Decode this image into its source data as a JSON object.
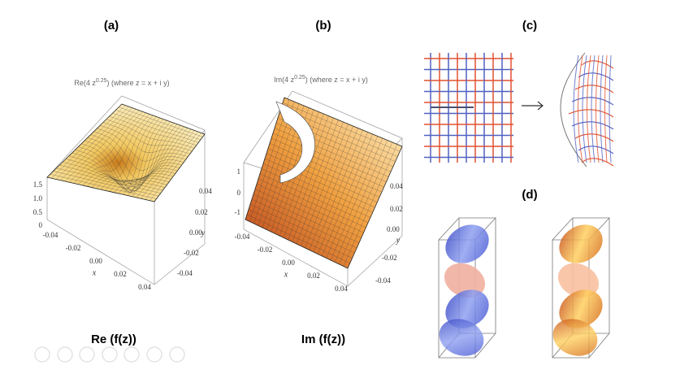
{
  "panels": [
    {
      "label": "(a)",
      "caption": "Re (f(z))",
      "plot": {
        "title": {
          "lead": "Re(4 z",
          "exp": "0.25",
          "tail": ") (where z = x + i y)"
        },
        "z_ticks": [
          "1.5",
          "1.0",
          "0.5",
          "0"
        ],
        "x_ticks": [
          "-0.04",
          "-0.02",
          "0.00",
          "0.02",
          "0.04"
        ],
        "x_label": "x",
        "y_ticks": [
          "0.04",
          "0.02",
          "0.00",
          "-0.02",
          "-0.04"
        ],
        "y_label": "y"
      }
    },
    {
      "label": "(b)",
      "caption": "Im (f(z))",
      "plot": {
        "title": {
          "lead": "Im(4 z",
          "exp": "0.25",
          "tail": ") (where z = x + i y)"
        },
        "z_ticks": [
          "1",
          "0",
          "-1"
        ],
        "x_ticks": [
          "-0.04",
          "-0.02",
          "0.00",
          "0.02",
          "0.04"
        ],
        "x_label": "x",
        "y_ticks": [
          "0.04",
          "0.02",
          "0.00",
          "-0.02",
          "-0.04"
        ],
        "y_label": "y"
      }
    },
    {
      "label": "(c)"
    },
    {
      "label": "(d)"
    }
  ]
}
